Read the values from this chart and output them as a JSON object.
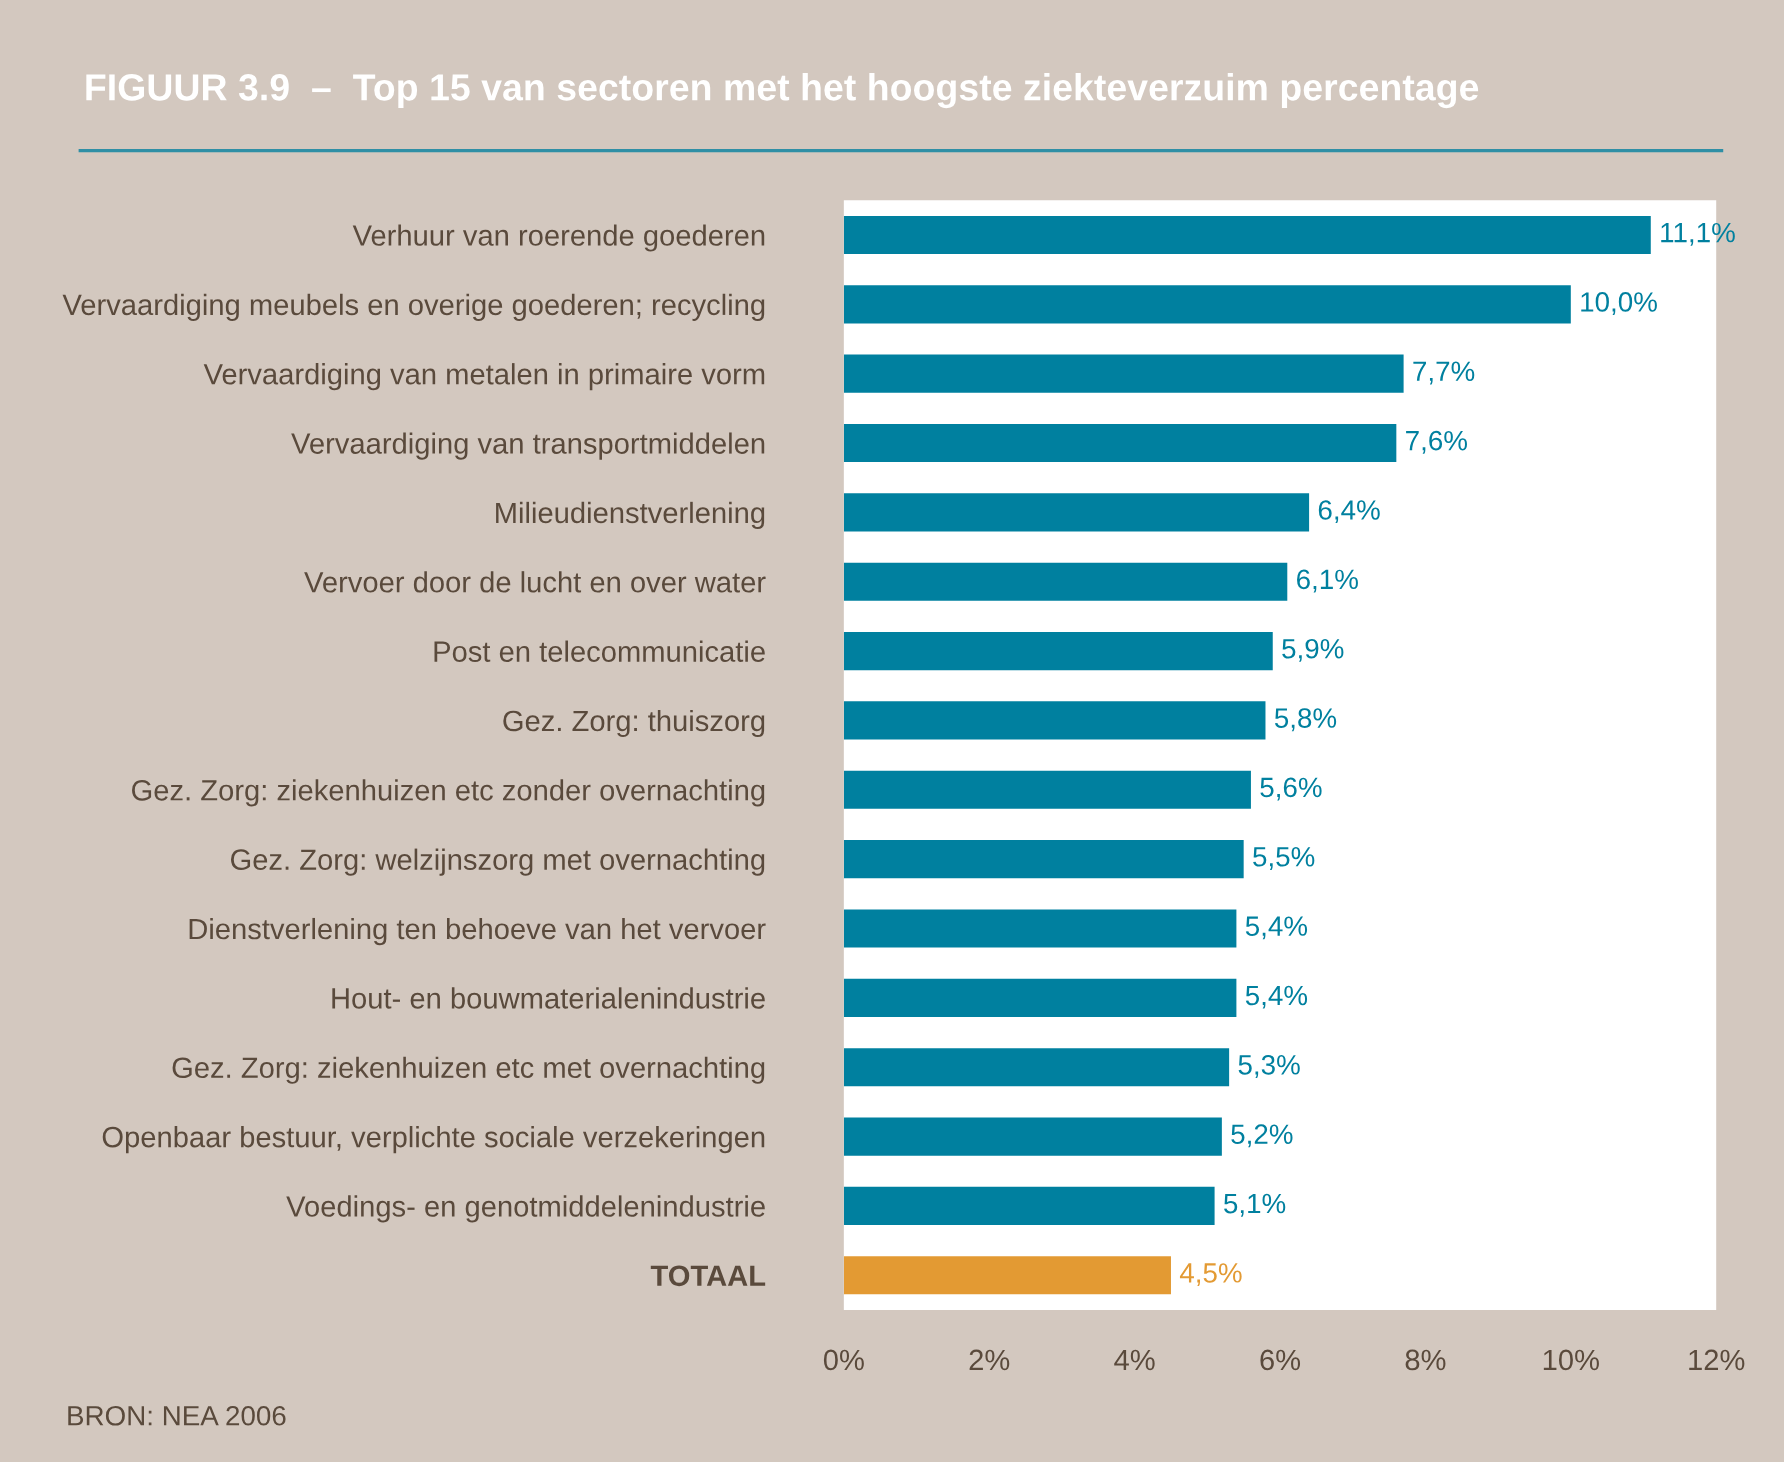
{
  "chart_data": {
    "type": "bar",
    "orientation": "horizontal",
    "title": "FIGUUR 3.9  –  Top 15 van sectoren met het hoogste ziekteverzuim percentage",
    "categories": [
      "Verhuur van roerende goederen",
      "Vervaardiging meubels en overige goederen; recycling",
      "Vervaardiging van metalen in primaire vorm",
      "Vervaardiging van transportmiddelen",
      "Milieudienstverlening",
      "Vervoer door de lucht en over water",
      "Post en telecommunicatie",
      "Gez. Zorg: thuiszorg",
      "Gez. Zorg: ziekenhuizen etc zonder overnachting",
      "Gez. Zorg: welzijnszorg met overnachting",
      "Dienstverlening ten behoeve van het vervoer",
      "Hout- en bouwmaterialenindustrie",
      "Gez. Zorg: ziekenhuizen etc met overnachting",
      "Openbaar bestuur, verplichte sociale verzekeringen",
      "Voedings- en genotmiddelenindustrie",
      "TOTAAL"
    ],
    "values": [
      11.1,
      10.0,
      7.7,
      7.6,
      6.4,
      6.1,
      5.9,
      5.8,
      5.6,
      5.5,
      5.4,
      5.4,
      5.3,
      5.2,
      5.1,
      4.5
    ],
    "value_labels": [
      "11,1%",
      "10,0%",
      "7,7%",
      "7,6%",
      "6,4%",
      "6,1%",
      "5,9%",
      "5,8%",
      "5,6%",
      "5,5%",
      "5,4%",
      "5,4%",
      "5,3%",
      "5,2%",
      "5,1%",
      "4,5%"
    ],
    "colors": [
      "#00809f",
      "#00809f",
      "#00809f",
      "#00809f",
      "#00809f",
      "#00809f",
      "#00809f",
      "#00809f",
      "#00809f",
      "#00809f",
      "#00809f",
      "#00809f",
      "#00809f",
      "#00809f",
      "#00809f",
      "#e39a33"
    ],
    "xlim": [
      0,
      12
    ],
    "xticks": [
      {
        "value": 0,
        "label": "0%"
      },
      {
        "value": 2,
        "label": "2%"
      },
      {
        "value": 4,
        "label": "4%"
      },
      {
        "value": 6,
        "label": "6%"
      },
      {
        "value": 8,
        "label": "8%"
      },
      {
        "value": 10,
        "label": "10%"
      },
      {
        "value": 12,
        "label": "12%"
      }
    ],
    "grid": false,
    "annotations": [
      "BRON: NEA 2006"
    ]
  }
}
